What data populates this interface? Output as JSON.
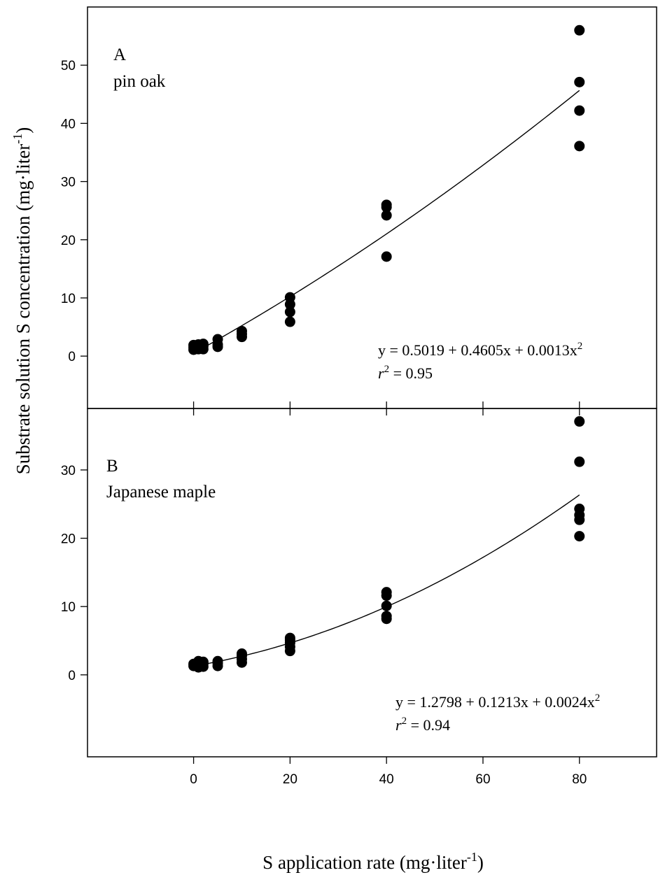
{
  "chart_data": [
    {
      "type": "scatter",
      "panel_label": "A",
      "species": "pin oak",
      "xlim": [
        -22,
        96
      ],
      "ylim": [
        -9,
        60
      ],
      "xticks": [
        0,
        20,
        40,
        60,
        80
      ],
      "yticks": [
        0,
        10,
        20,
        30,
        40,
        50
      ],
      "tick_labels": [
        "0",
        "10",
        "20",
        "30",
        "40",
        "50"
      ],
      "points": [
        {
          "x": 0,
          "y": 1.1
        },
        {
          "x": 0,
          "y": 1.5
        },
        {
          "x": 0,
          "y": 1.9
        },
        {
          "x": 1,
          "y": 1.2
        },
        {
          "x": 1,
          "y": 1.6
        },
        {
          "x": 1,
          "y": 2.0
        },
        {
          "x": 2,
          "y": 1.2
        },
        {
          "x": 2,
          "y": 1.7
        },
        {
          "x": 2,
          "y": 2.1
        },
        {
          "x": 5,
          "y": 1.6
        },
        {
          "x": 5,
          "y": 2.0
        },
        {
          "x": 5,
          "y": 2.9
        },
        {
          "x": 10,
          "y": 3.3
        },
        {
          "x": 10,
          "y": 3.8
        },
        {
          "x": 10,
          "y": 4.3
        },
        {
          "x": 20,
          "y": 5.9
        },
        {
          "x": 20,
          "y": 7.6
        },
        {
          "x": 20,
          "y": 8.9
        },
        {
          "x": 20,
          "y": 10.1
        },
        {
          "x": 40,
          "y": 17.1
        },
        {
          "x": 40,
          "y": 24.2
        },
        {
          "x": 40,
          "y": 25.6
        },
        {
          "x": 40,
          "y": 26.0
        },
        {
          "x": 80,
          "y": 36.1
        },
        {
          "x": 80,
          "y": 42.2
        },
        {
          "x": 80,
          "y": 47.1
        },
        {
          "x": 80,
          "y": 56.0
        }
      ],
      "fit": {
        "a": 0.5019,
        "b": 0.4605,
        "c": 0.0013,
        "x_range": [
          0,
          80
        ]
      },
      "equation": "y = 0.5019 + 0.4605x + 0.0013x",
      "equation_sup": "2",
      "r_label": "r",
      "r_sup": "2",
      "r_value": " = 0.95"
    },
    {
      "type": "scatter",
      "panel_label": "B",
      "species": "Japanese maple",
      "xlim": [
        -22,
        96
      ],
      "ylim": [
        -12,
        39
      ],
      "xticks": [
        0,
        20,
        40,
        60,
        80
      ],
      "yticks": [
        0,
        10,
        20,
        30
      ],
      "tick_labels": [
        "0",
        "10",
        "20",
        "30"
      ],
      "points": [
        {
          "x": 0,
          "y": 1.3
        },
        {
          "x": 0,
          "y": 1.6
        },
        {
          "x": 1,
          "y": 1.1
        },
        {
          "x": 1,
          "y": 1.5
        },
        {
          "x": 1,
          "y": 2.0
        },
        {
          "x": 2,
          "y": 1.2
        },
        {
          "x": 2,
          "y": 1.6
        },
        {
          "x": 2,
          "y": 1.9
        },
        {
          "x": 5,
          "y": 1.3
        },
        {
          "x": 5,
          "y": 1.7
        },
        {
          "x": 5,
          "y": 2.0
        },
        {
          "x": 10,
          "y": 1.8
        },
        {
          "x": 10,
          "y": 2.3
        },
        {
          "x": 10,
          "y": 2.8
        },
        {
          "x": 10,
          "y": 3.1
        },
        {
          "x": 20,
          "y": 3.5
        },
        {
          "x": 20,
          "y": 4.1
        },
        {
          "x": 20,
          "y": 4.7
        },
        {
          "x": 20,
          "y": 5.1
        },
        {
          "x": 20,
          "y": 5.4
        },
        {
          "x": 40,
          "y": 8.2
        },
        {
          "x": 40,
          "y": 8.6
        },
        {
          "x": 40,
          "y": 10.1
        },
        {
          "x": 40,
          "y": 11.6
        },
        {
          "x": 40,
          "y": 12.1
        },
        {
          "x": 80,
          "y": 20.3
        },
        {
          "x": 80,
          "y": 22.7
        },
        {
          "x": 80,
          "y": 23.4
        },
        {
          "x": 80,
          "y": 24.3
        },
        {
          "x": 80,
          "y": 31.2
        },
        {
          "x": 80,
          "y": 37.1
        }
      ],
      "fit": {
        "a": 1.2798,
        "b": 0.1213,
        "c": 0.0024,
        "x_range": [
          0,
          80
        ]
      },
      "equation": "y = 1.2798 + 0.1213x + 0.0024x",
      "equation_sup": "2",
      "r_label": "r",
      "r_sup": "2",
      "r_value": " = 0.94"
    }
  ],
  "x_tick_labels": [
    "0",
    "20",
    "40",
    "60",
    "80"
  ],
  "xlabel": {
    "text": "S application rate (mg·liter",
    "sup": "-1",
    "close": ")"
  },
  "ylabel": {
    "text": "Substrate solution S concentration (mg·liter",
    "sup": "-1",
    "close": ")"
  }
}
